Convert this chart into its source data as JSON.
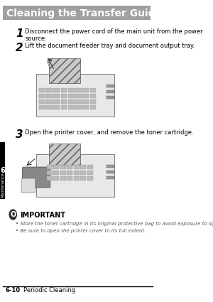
{
  "title": "Cleaning the Transfer Guide Area",
  "title_bg": "#a0a0a0",
  "title_color": "#ffffff",
  "title_font_size": 10,
  "page_bg": "#ffffff",
  "step1_num": "1",
  "step1_text": "Disconnect the power cord of the main unit from the power\nsource.",
  "step2_num": "2",
  "step2_text": "Lift the document feeder tray and document output tray.",
  "step3_num": "3",
  "step3_text": "Open the printer cover, and remove the toner cartridge.",
  "important_title": "IMPORTANT",
  "important_bullet1": "• Store the toner cartridge in its original protective bag to avoid exposure to light.",
  "important_bullet2": "• Be sure to open the printer cover to its full extent.",
  "footer_left": "6-10",
  "footer_right": "Periodic Cleaning",
  "sidebar_text": "Maintenance",
  "sidebar_number": "6",
  "sidebar_bg": "#000000",
  "sidebar_text_color": "#ffffff",
  "step_num_color": "#000000",
  "step_text_color": "#000000",
  "important_title_color": "#000000",
  "important_text_color": "#555555",
  "footer_color": "#000000"
}
